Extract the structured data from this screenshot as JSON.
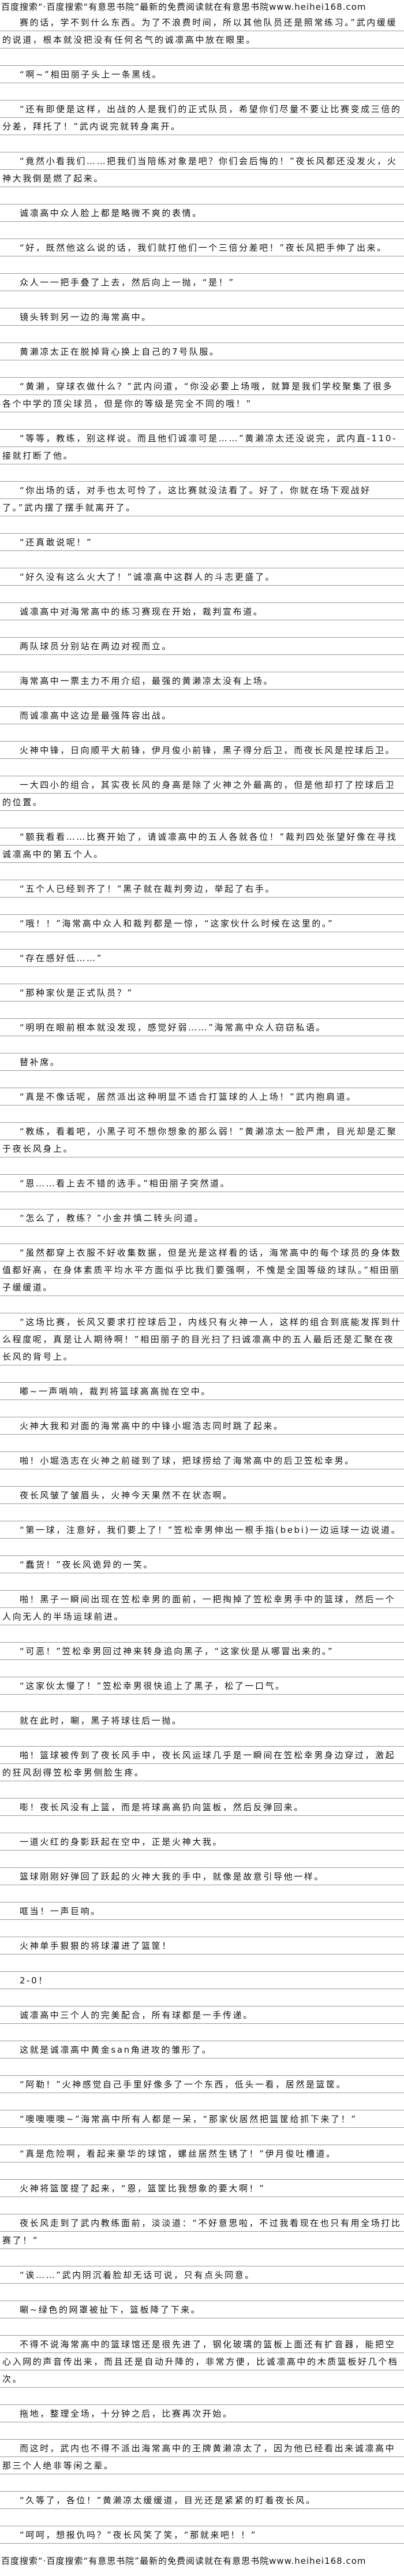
{
  "header_banner": "百度搜索“·百度搜索“有意思书院”最新的免费阅读就在有意思书院www.heihei168.com",
  "paragraphs": [
    "赛的话，学不到什么东西。为了不浪费时间，所以其他队员还是照常练习。”武内缓缓的说道，根本就没把没有任何名气的诚凛高中放在眼里。",
    "“啊~”相田丽子头上一条黑线。",
    "“还有即便是这样，出战的人是我们的正式队员，希望你们尽量不要让比赛变成三倍的分差，拜托了！”武内说完就转身离开。",
    "“竟然小看我们……把我们当陪练对象是吧？你们会后悔的！”夜长风都还没发火，火神大我倒是燃了起来。",
    "诚凛高中众人脸上都是略微不爽的表情。",
    "“好，既然他这么说的话，我们就打他们一个三倍分差吧！”夜长风把手伸了出来。",
    "众人一一把手叠了上去，然后向上一抛，“是！”",
    "镜头转到另一边的海常高中。",
    "黄濑凉太正在脱掉背心换上自己的7号队服。",
    "“黄濑，穿球衣做什么？”武内问道，“你没必要上场哦，就算是我们学校聚集了很多各个中学的顶尖球员，但是你的等级是完全不同的哦！”",
    "“等等，教练，别这样说。而且他们诚凛可是……”黄濑凉太还没说完，武内直-110-接就打断了他。",
    "“你出场的话，对手也太可怜了，这比赛就没法看了。好了，你就在场下观战好了。”武内摆了摆手就离开了。",
    "“还真敢说呢！”",
    "“好久没有这么火大了！”诚凛高中这群人的斗志更盛了。",
    "诚凛高中对海常高中的练习赛现在开始，裁判宣布道。",
    "两队球员分别站在两边对视而立。",
    "海常高中一票主力不用介绍，最强的黄濑凉太没有上场。",
    "而诚凛高中这边是最强阵容出战。",
    "火神中锋，日向顺平大前锋，伊月俊小前锋，黑子得分后卫，而夜长风是控球后卫。",
    "一大四小的组合，其实夜长风的身高是除了火神之外最高的，但是他却打了控球后卫的位置。",
    "“额我看看……比赛开始了，请诚凛高中的五人各就各位！”裁判四处张望好像在寻找诚凛高中的第五个人。",
    "“五个人已经到齐了！”黑子就在裁判旁边，举起了右手。",
    "“哦！！”海常高中众人和裁判都是一惊，“这家伙什么时候在这里的。”",
    "“存在感好低……”",
    "“那种家伙是正式队员？”",
    "“明明在眼前根本就没发现，感觉好弱……”海常高中众人窃窃私语。",
    "替补席。",
    "“真是不像话呢，居然派出这种明显不适合打篮球的人上场！”武内抱肩道。",
    "“教练，看着吧，小黑子可不想你想象的那么弱！”黄濑凉太一脸严肃，目光却是汇聚于夜长风身上。",
    "“恩……看上去不错的选手。”相田丽子突然道。",
    "“怎么了，教练？”小金井慎二转头问道。",
    "“虽然都穿上衣服不好收集数据，但是光是这样看的话，海常高中的每个球员的身体数值都好高，在身体素质平均水平方面似乎比我们要强啊，不愧是全国等级的球队。”相田丽子缓缓道。",
    "“这场比赛，长风又要求打控球后卫，内线只有火神一人，这样的组合到底能发挥到什么程度呢，真是让人期待啊！”相田丽子的目光扫了扫诚凛高中的五人最后还是汇聚在夜长风的背号上。",
    "嘟~一声哨响，裁判将篮球高高抛在空中。",
    "火神大我和对面的海常高中的中锋小堀浩志同时跳了起来。",
    "啪！小堀浩志在火神之前碰到了球，把球捞给了海常高中的后卫笠松幸男。",
    "夜长风皱了皱眉头，火神今天果然不在状态啊。",
    "“第一球，注意好，我们要上了！”笠松幸男伸出一根手指(bebi)一边运球一边说道。",
    "“蠢货！”夜长风诡异的一笑。",
    "啪！黑子一瞬间出现在笠松幸男的面前，一把掏掉了笠松幸男手中的篮球，然后一个人向无人的半场运球前进。",
    "“可恶！”笠松幸男回过神来转身追向黑子，“这家伙是从哪冒出来的。”",
    "“这家伙太慢了！”笠松幸男很快追上了黑子，松了一口气。",
    "就在此时，唰，黑子将球往后一抛。",
    "啪！篮球被传到了夜长风手中，夜长风运球几乎是一瞬间在笠松幸男身边穿过，激起的狂风刮得笠松幸男侧脸生疼。",
    "嘭！夜长风没有上篮，而是将球高高扔向篮板，然后反弹回来。",
    "一道火红的身影跃起在空中，正是火神大我。",
    "篮球刚刚好弹回了跃起的火神大我的手中，就像是故意引导他一样。",
    "哐当！一声巨响。",
    "火神单手狠狠的将球灌进了篮筐！",
    "2-0！",
    "诚凛高中三个人的完美配合，所有球都是一手传递。",
    "这就是诚凛高中黄金san角进攻的雏形了。",
    "“阿勒！”火神感觉自己手里好像多了一个东西，低头一看，居然是篮筐。",
    "“噢噢噢噢~”海常高中所有人都是一呆，“那家伙居然把篮筐给抓下来了！”",
    "“真是危险啊，看起来豪华的球馆，螺丝居然生锈了！”伊月俊吐槽道。",
    "火神将篮筐提了起来，“恩，篮筐比我想象的要大啊！”",
    "夜长风走到了武内教练面前，淡淡道：“不好意思啦，不过我看现在也只有用全场打比赛了！”",
    "“诶……”武内阴沉着脸却无话可说，只有点头同意。",
    "唰~绿色的网罩被扯下，篮板降了下来。",
    "不得不说海常高中的篮球馆还是很先进了，钢化玻璃的篮板上面还有扩音器，能把空心入网的声音传出来，而且还是自动升降的，非常方便，比诚凛高中的木质篮板好几个档次。",
    "拖地，整理全场，十分钟之后，比赛再次开始。",
    "而这时，武内也不得不派出海常高中的王牌黄濑凉太了，因为他已经看出来诚凛高中那三个人绝非等闲之辈。",
    "“久等了，各位！”黄濑凉太缓缓道，目光还是紧紧的盯着夜长风。",
    "“呵呵，想报仇吗？”夜长风笑了笑，“那就来吧！！”"
  ],
  "footer_banner": "百度搜索“·百度搜索“有意思书院”最新的免费阅读就在有意思书院www.heihei168.com"
}
